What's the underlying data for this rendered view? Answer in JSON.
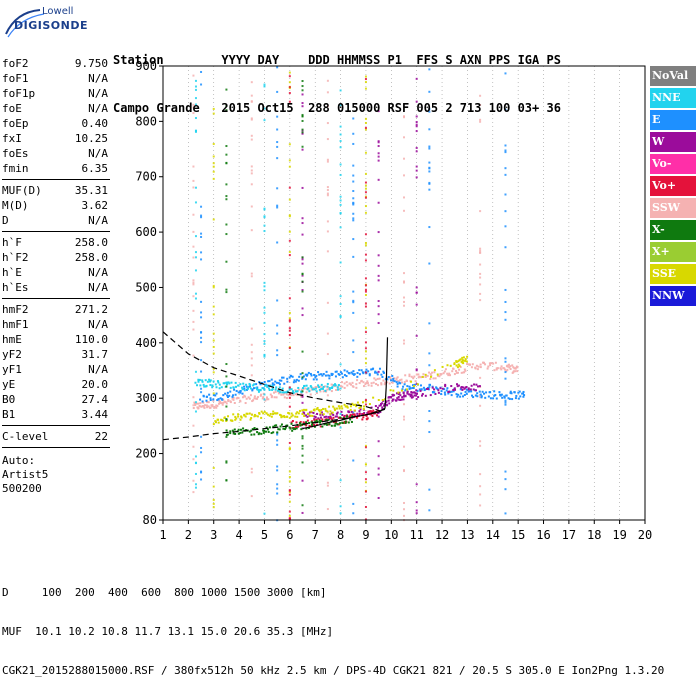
{
  "logo": {
    "line1": "Lowell",
    "line2": "DIGISONDE"
  },
  "header": {
    "labels": "Station        YYYY DAY    DDD HHMMSS P1  FFS S AXN PPS IGA PS",
    "values": "Campo Grande   2015 Oct15  288 015000 RSF 005 2 713 100 03+ 36"
  },
  "params": {
    "group1": [
      {
        "name": "foF2",
        "value": "9.750"
      },
      {
        "name": "foF1",
        "value": "N/A"
      },
      {
        "name": "foF1p",
        "value": "N/A"
      },
      {
        "name": "foE",
        "value": "N/A"
      },
      {
        "name": "foEp",
        "value": "0.40"
      },
      {
        "name": "fxI",
        "value": "10.25"
      },
      {
        "name": "foEs",
        "value": "N/A"
      },
      {
        "name": "fmin",
        "value": "6.35"
      }
    ],
    "group2": [
      {
        "name": "MUF(D)",
        "value": "35.31"
      },
      {
        "name": "M(D)",
        "value": "3.62"
      },
      {
        "name": "D",
        "value": "N/A"
      }
    ],
    "group3": [
      {
        "name": "h`F",
        "value": "258.0"
      },
      {
        "name": "h`F2",
        "value": "258.0"
      },
      {
        "name": "h`E",
        "value": "N/A"
      },
      {
        "name": "h`Es",
        "value": "N/A"
      }
    ],
    "group4": [
      {
        "name": "hmF2",
        "value": "271.2"
      },
      {
        "name": "hmF1",
        "value": "N/A"
      },
      {
        "name": "hmE",
        "value": "110.0"
      },
      {
        "name": "yF2",
        "value": "31.7"
      },
      {
        "name": "yF1",
        "value": "N/A"
      },
      {
        "name": "yE",
        "value": "20.0"
      },
      {
        "name": "B0",
        "value": "27.4"
      },
      {
        "name": "B1",
        "value": "3.44"
      }
    ],
    "group5": [
      {
        "name": "C-level",
        "value": "22"
      }
    ],
    "auto": [
      "Auto:",
      "Artist5",
      "500200"
    ]
  },
  "legend": [
    {
      "label": "NoVal",
      "color": "#7f7f7f"
    },
    {
      "label": "NNE",
      "color": "#22d3ee"
    },
    {
      "label": "E",
      "color": "#1e90ff"
    },
    {
      "label": "W",
      "color": "#9b0c9b"
    },
    {
      "label": "Vo-",
      "color": "#ff2fa8"
    },
    {
      "label": "Vo+",
      "color": "#e4123b"
    },
    {
      "label": "SSW",
      "color": "#f5b2b2"
    },
    {
      "label": "X-",
      "color": "#0f7a0f"
    },
    {
      "label": "X+",
      "color": "#9acd32"
    },
    {
      "label": "SSE",
      "color": "#d8d800"
    },
    {
      "label": "NNW",
      "color": "#1a1ad9"
    }
  ],
  "footer": {
    "line1": "D     100  200  400  600  800 1000 1500 3000 [km]",
    "line2": "MUF  10.1 10.2 10.8 11.7 13.1 15.0 20.6 35.3 [MHz]",
    "line3": "CGK21_2015288015000.RSF / 380fx512h 50 kHz 2.5 km / DPS-4D CGK21 821 / 20.5 S 305.0 E Ion2Png 1.3.20"
  },
  "chart_data": {
    "type": "scatter",
    "title": "",
    "xlabel": "",
    "ylabel": "",
    "xlim": [
      1,
      20
    ],
    "ylim": [
      80,
      900
    ],
    "x_ticks": [
      1,
      2,
      3,
      4,
      5,
      6,
      7,
      8,
      9,
      10,
      11,
      12,
      13,
      14,
      15,
      16,
      17,
      18,
      19,
      20
    ],
    "y_ticks": [
      80,
      200,
      300,
      400,
      500,
      600,
      700,
      800,
      900
    ],
    "grid": "vertical dotted at integer MHz",
    "traces": [
      {
        "name": "F2 trace (SSW)",
        "color": "#f5b2b2",
        "points": [
          [
            2.2,
            285
          ],
          [
            2.8,
            288
          ],
          [
            3.5,
            292
          ],
          [
            4.5,
            300
          ],
          [
            5.5,
            305
          ],
          [
            6.5,
            310
          ],
          [
            7.5,
            318
          ],
          [
            8.5,
            325
          ],
          [
            9.5,
            330
          ],
          [
            10.5,
            335
          ],
          [
            11.5,
            340
          ],
          [
            12.5,
            350
          ],
          [
            13.5,
            360
          ],
          [
            14.5,
            355
          ],
          [
            15.0,
            350
          ]
        ]
      },
      {
        "name": "F2 trace (E)",
        "color": "#1e90ff",
        "points": [
          [
            2.5,
            300
          ],
          [
            3.5,
            305
          ],
          [
            4.5,
            320
          ],
          [
            5.5,
            330
          ],
          [
            6.5,
            338
          ],
          [
            7.5,
            342
          ],
          [
            8.5,
            345
          ],
          [
            9.5,
            348
          ],
          [
            10.5,
            320
          ],
          [
            11.5,
            318
          ],
          [
            12.5,
            310
          ],
          [
            13.5,
            308
          ],
          [
            14.5,
            305
          ],
          [
            15.3,
            305
          ]
        ]
      },
      {
        "name": "F trace (W)",
        "color": "#9b0c9b",
        "points": [
          [
            6.5,
            270
          ],
          [
            7.5,
            268
          ],
          [
            8.5,
            272
          ],
          [
            9.5,
            280
          ],
          [
            10.0,
            300
          ],
          [
            10.5,
            305
          ],
          [
            11.0,
            308
          ],
          [
            12.5,
            320
          ],
          [
            13.5,
            318
          ]
        ]
      },
      {
        "name": "F trace (SSE)",
        "color": "#d8d800",
        "points": [
          [
            3.0,
            260
          ],
          [
            4.0,
            265
          ],
          [
            5.0,
            270
          ],
          [
            6.0,
            272
          ],
          [
            7.0,
            275
          ],
          [
            8.0,
            280
          ],
          [
            9.0,
            288
          ],
          [
            12.5,
            360
          ],
          [
            13.0,
            370
          ]
        ]
      },
      {
        "name": "F trace (NNE)",
        "color": "#22d3ee",
        "points": [
          [
            2.3,
            330
          ],
          [
            3.0,
            325
          ],
          [
            4.0,
            320
          ],
          [
            5.0,
            318
          ],
          [
            6.0,
            315
          ],
          [
            7.0,
            318
          ],
          [
            8.0,
            320
          ]
        ]
      },
      {
        "name": "F trace (Vo+)",
        "color": "#e4123b",
        "points": [
          [
            6.0,
            252
          ],
          [
            7.0,
            255
          ],
          [
            8.0,
            260
          ],
          [
            9.0,
            268
          ],
          [
            9.5,
            275
          ]
        ]
      },
      {
        "name": "F trace (X-)",
        "color": "#0f7a0f",
        "points": [
          [
            3.5,
            235
          ],
          [
            4.5,
            240
          ],
          [
            5.5,
            245
          ],
          [
            6.5,
            250
          ],
          [
            7.5,
            255
          ],
          [
            8.5,
            262
          ]
        ]
      }
    ],
    "fitted_curves": [
      {
        "name": "dashed upper",
        "style": "dashed",
        "points": [
          [
            1.0,
            420
          ],
          [
            2.0,
            380
          ],
          [
            3.0,
            355
          ],
          [
            4.0,
            340
          ],
          [
            5.0,
            325
          ],
          [
            6.0,
            310
          ],
          [
            7.0,
            300
          ],
          [
            8.0,
            292
          ],
          [
            9.0,
            285
          ],
          [
            9.7,
            275
          ]
        ]
      },
      {
        "name": "dashed lower",
        "style": "dashed",
        "points": [
          [
            1.0,
            225
          ],
          [
            2.0,
            230
          ],
          [
            3.0,
            236
          ],
          [
            4.0,
            240
          ],
          [
            5.0,
            245
          ],
          [
            6.0,
            250
          ],
          [
            7.0,
            256
          ],
          [
            8.0,
            262
          ],
          [
            9.0,
            270
          ],
          [
            9.75,
            280
          ]
        ]
      },
      {
        "name": "profile",
        "style": "solid",
        "points": [
          [
            6.5,
            245
          ],
          [
            7.0,
            250
          ],
          [
            7.5,
            256
          ],
          [
            8.0,
            260
          ],
          [
            8.5,
            266
          ],
          [
            9.0,
            270
          ],
          [
            9.5,
            275
          ],
          [
            9.75,
            282
          ],
          [
            9.8,
            320
          ],
          [
            9.85,
            410
          ]
        ]
      }
    ]
  }
}
